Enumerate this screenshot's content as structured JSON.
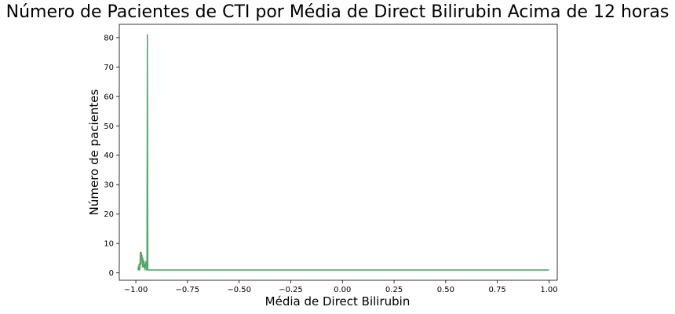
{
  "chart_data": {
    "type": "line",
    "title": "Número de Pacientes de CTI por Média de Direct Bilirubin Acima de 12 horas",
    "xlabel": "Média de Direct Bilirubin",
    "ylabel": "Número de pacientes",
    "xlim": [
      -1.08,
      1.04
    ],
    "ylim": [
      -2.5,
      84.5
    ],
    "xticks": [
      -1.0,
      -0.75,
      -0.5,
      -0.25,
      0.0,
      0.25,
      0.5,
      0.75,
      1.0
    ],
    "xtick_labels": [
      "−1.00",
      "−0.75",
      "−0.50",
      "−0.25",
      "0.00",
      "0.25",
      "0.50",
      "0.75",
      "1.00"
    ],
    "yticks": [
      0,
      10,
      20,
      30,
      40,
      50,
      60,
      70,
      80
    ],
    "ytick_labels": [
      "0",
      "10",
      "20",
      "30",
      "40",
      "50",
      "60",
      "70",
      "80"
    ],
    "grid": false,
    "legend": false,
    "series": [
      {
        "color": "#55a868",
        "x": [
          -0.99,
          -0.988,
          -0.986,
          -0.984,
          -0.982,
          -0.98,
          -0.978,
          -0.976,
          -0.974,
          -0.972,
          -0.97,
          -0.968,
          -0.966,
          -0.964,
          -0.962,
          -0.96,
          -0.958,
          -0.956,
          -0.954,
          -0.952,
          -0.95,
          -0.948,
          -0.946,
          -0.944,
          -0.942,
          -0.94,
          -0.938,
          -0.936,
          -0.934,
          -0.93,
          -0.92,
          -0.9,
          -0.85,
          -0.8,
          -0.7,
          -0.6,
          -0.5,
          -0.4,
          -0.3,
          -0.2,
          -0.1,
          0.0,
          0.1,
          0.2,
          0.3,
          0.4,
          0.5,
          0.6,
          0.7,
          0.8,
          0.9,
          1.0
        ],
        "y": [
          1,
          2,
          1,
          3,
          1,
          2,
          7,
          3,
          7,
          5,
          6,
          2,
          5,
          3,
          2,
          4,
          2,
          1,
          3,
          2,
          4,
          1,
          2,
          81,
          1,
          1,
          1,
          1,
          1,
          1,
          1,
          1,
          1,
          1,
          1,
          1,
          1,
          1,
          1,
          1,
          1,
          1,
          1,
          1,
          1,
          1,
          1,
          1,
          1,
          1,
          1,
          1
        ]
      }
    ]
  }
}
